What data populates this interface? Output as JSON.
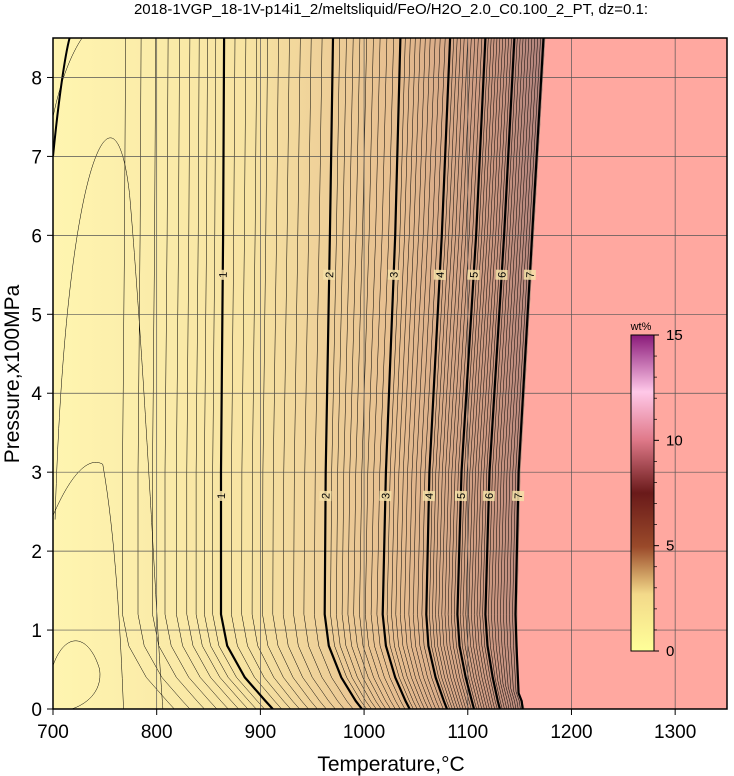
{
  "chart_data": {
    "type": "heatmap",
    "title": "2018-1VGP_18-1V-p14i1_2/meltsliquid/FeO/H2O_2.0_C0.100_2_PT, dz=0.1:",
    "xlabel": "Temperature,°C",
    "ylabel": "Pressure,x100MPa",
    "xlim": [
      700,
      1350
    ],
    "ylim": [
      0,
      8.5
    ],
    "x_ticks": [
      "700",
      "800",
      "900",
      "1000",
      "1100",
      "1200",
      "1300"
    ],
    "y_ticks": [
      "0",
      "1",
      "2",
      "3",
      "4",
      "5",
      "6",
      "7",
      "8"
    ],
    "grid": true,
    "colorbar": {
      "unit": "wt%",
      "range": [
        0,
        15
      ],
      "ticks": [
        "0",
        "5",
        "10",
        "15"
      ],
      "placement": "right-inside"
    },
    "major_contours": [
      {
        "level": "1",
        "points": [
          [
            865,
            8.5
          ],
          [
            864,
            6.0
          ],
          [
            862,
            3.0
          ],
          [
            862,
            1.2
          ],
          [
            868,
            0.8
          ],
          [
            885,
            0.4
          ],
          [
            905,
            0.1
          ],
          [
            912,
            0
          ]
        ]
      },
      {
        "level": "2",
        "points": [
          [
            970,
            8.5
          ],
          [
            967,
            6.0
          ],
          [
            963,
            3.0
          ],
          [
            962,
            1.2
          ],
          [
            966,
            0.8
          ],
          [
            978,
            0.4
          ],
          [
            992,
            0.1
          ],
          [
            998,
            0
          ]
        ]
      },
      {
        "level": "3",
        "points": [
          [
            1035,
            8.5
          ],
          [
            1030,
            6.0
          ],
          [
            1021,
            3.0
          ],
          [
            1018,
            1.2
          ],
          [
            1021,
            0.8
          ],
          [
            1030,
            0.4
          ],
          [
            1040,
            0.1
          ],
          [
            1044,
            0
          ]
        ]
      },
      {
        "level": "4",
        "points": [
          [
            1083,
            8.5
          ],
          [
            1075,
            6.0
          ],
          [
            1063,
            3.0
          ],
          [
            1060,
            1.2
          ],
          [
            1062,
            0.8
          ],
          [
            1069,
            0.4
          ],
          [
            1077,
            0.1
          ],
          [
            1080,
            0
          ]
        ]
      },
      {
        "level": "5",
        "points": [
          [
            1117,
            8.5
          ],
          [
            1108,
            6.0
          ],
          [
            1094,
            3.0
          ],
          [
            1090,
            1.2
          ],
          [
            1092,
            0.8
          ],
          [
            1098,
            0.4
          ],
          [
            1104,
            0.1
          ],
          [
            1106,
            0
          ]
        ]
      },
      {
        "level": "6",
        "points": [
          [
            1145,
            8.5
          ],
          [
            1135,
            6.0
          ],
          [
            1121,
            3.0
          ],
          [
            1117,
            1.2
          ],
          [
            1119,
            0.8
          ],
          [
            1124,
            0.4
          ],
          [
            1129,
            0.1
          ],
          [
            1131,
            0
          ]
        ]
      },
      {
        "level": "7",
        "points": [
          [
            1173,
            8.5
          ],
          [
            1162,
            6.0
          ],
          [
            1149,
            3.0
          ],
          [
            1146,
            1.2
          ],
          [
            1147,
            0.8
          ],
          [
            1149,
            0.2
          ],
          [
            1152,
            0.1
          ],
          [
            1153,
            0
          ]
        ]
      }
    ],
    "saturated_region": {
      "boundary_points": [
        [
          1175,
          8.5
        ],
        [
          1164,
          6.0
        ],
        [
          1151,
          3.0
        ],
        [
          1148,
          1.2
        ],
        [
          1149,
          0.2
        ],
        [
          1154,
          0.05
        ],
        [
          1155,
          0
        ]
      ]
    }
  }
}
